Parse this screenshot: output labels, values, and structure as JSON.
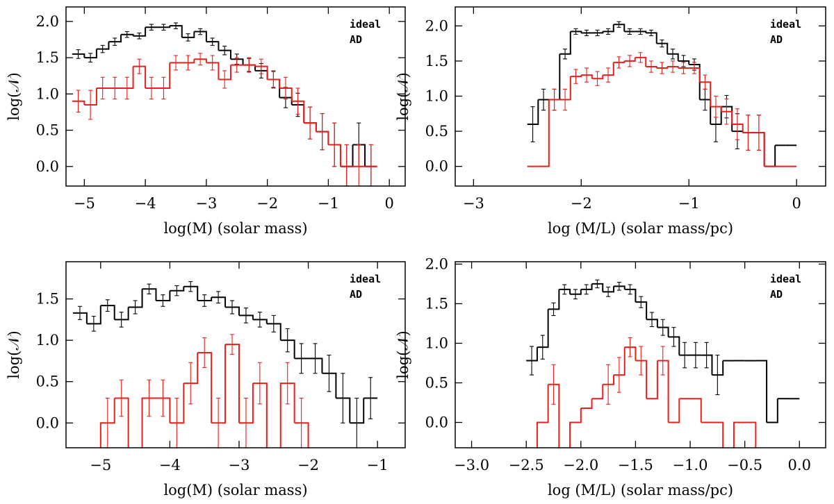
{
  "chart_data": [
    {
      "type": "histogram",
      "xlabel": "log(M) (solar mass)",
      "ylabel": "log(𝒩)",
      "legend": "upper right",
      "xlim": [
        -5.3,
        0.26
      ],
      "ylim": [
        -0.27,
        2.2
      ],
      "xticks": [
        {
          "value": -5,
          "label": "−5"
        },
        {
          "value": -4,
          "label": "−4"
        },
        {
          "value": -3,
          "label": "−3"
        },
        {
          "value": -2,
          "label": "−2"
        },
        {
          "value": -1,
          "label": "−1"
        },
        0
      ],
      "yticks": [
        {
          "value": 0,
          "label": "0.0"
        },
        0.5,
        {
          "value": 1,
          "label": "1.0"
        },
        1.5,
        {
          "value": 2,
          "label": "2.0"
        }
      ],
      "bins": [
        -5.2,
        -5.0,
        -4.8,
        -4.6,
        -4.4,
        -4.2,
        -4.0,
        -3.8,
        -3.6,
        -3.4,
        -3.2,
        -3.0,
        -2.8,
        -2.6,
        -2.4,
        -2.2,
        -2.0,
        -1.8,
        -1.6,
        -1.4,
        -1.2,
        -1.0,
        -0.8,
        -0.6,
        -0.4,
        -0.2
      ],
      "series": [
        {
          "name": "ideal",
          "color": "#000000",
          "values": [
            1.55,
            1.5,
            1.62,
            1.72,
            1.82,
            1.8,
            1.92,
            1.92,
            1.94,
            1.78,
            1.86,
            1.72,
            1.6,
            1.48,
            1.4,
            1.32,
            1.2,
            0.95,
            0.85,
            0.6,
            0.48,
            0.3,
            0,
            0.3,
            0
          ],
          "errors": [
            0.06,
            0.06,
            0.05,
            0.05,
            0.04,
            0.04,
            0.04,
            0.04,
            0.04,
            0.05,
            0.04,
            0.05,
            0.06,
            0.07,
            0.09,
            0.1,
            0.11,
            0.14,
            0.16,
            0.22,
            0.25,
            0.3,
            0.3,
            0.3,
            0.3
          ]
        },
        {
          "name": "AD",
          "color": "#e8201c",
          "values": [
            0.9,
            0.85,
            1.08,
            1.08,
            1.08,
            1.38,
            1.08,
            1.08,
            1.43,
            1.43,
            1.48,
            1.43,
            1.2,
            1.4,
            1.4,
            1.38,
            1.2,
            1.08,
            0.9,
            0.6,
            0.48,
            0.3,
            0,
            0,
            0
          ],
          "errors": [
            0.15,
            0.2,
            0.15,
            0.15,
            0.15,
            0.1,
            0.15,
            0.15,
            0.1,
            0.1,
            0.08,
            0.1,
            0.12,
            0.1,
            0.1,
            0.1,
            0.12,
            0.15,
            0.18,
            0.22,
            0.25,
            0.3,
            0.3,
            0.3,
            0.3
          ]
        }
      ]
    },
    {
      "type": "histogram",
      "xlabel": "log (M/L) (solar mass/pc)",
      "ylabel": "log(𝒩)",
      "legend": "upper right",
      "xlim": [
        -3.17,
        0.27
      ],
      "ylim": [
        -0.28,
        2.27
      ],
      "xticks": [
        {
          "value": -3,
          "label": "−3"
        },
        {
          "value": -2,
          "label": "−2"
        },
        {
          "value": -1,
          "label": "−1"
        },
        0
      ],
      "yticks": [
        {
          "value": 0,
          "label": "0.0"
        },
        0.5,
        {
          "value": 1,
          "label": "1.0"
        },
        1.5,
        {
          "value": 2,
          "label": "2.0"
        }
      ],
      "bins": [
        -2.5,
        -2.4,
        -2.3,
        -2.2,
        -2.1,
        -2.0,
        -1.9,
        -1.8,
        -1.7,
        -1.6,
        -1.5,
        -1.4,
        -1.3,
        -1.2,
        -1.1,
        -1.0,
        -0.9,
        -0.8,
        -0.7,
        -0.6,
        -0.5,
        -0.4,
        -0.3,
        -0.2,
        -0.1,
        0.0
      ],
      "series": [
        {
          "name": "ideal",
          "color": "#000000",
          "values": [
            0.6,
            0.95,
            0.95,
            1.6,
            1.92,
            1.9,
            1.9,
            1.92,
            2.02,
            1.92,
            1.92,
            1.9,
            1.75,
            1.6,
            1.5,
            1.45,
            0.95,
            0.6,
            0.85,
            0.5,
            0.48,
            0.48,
            0,
            0.3,
            0.3
          ],
          "errors": [
            0.25,
            0.15,
            0.15,
            0.07,
            0.04,
            0.04,
            0.04,
            0.04,
            0.04,
            0.04,
            0.04,
            0.04,
            0.05,
            0.07,
            0.08,
            0.08,
            0.15,
            0.25,
            0.16,
            0.25,
            0.25,
            0.25,
            null,
            null,
            null
          ]
        },
        {
          "name": "AD",
          "color": "#e8201c",
          "values": [
            0,
            0,
            0.95,
            0.95,
            1.28,
            1.3,
            1.25,
            1.3,
            1.48,
            1.5,
            1.55,
            1.42,
            1.4,
            1.42,
            1.4,
            1.4,
            1.2,
            0.85,
            0.78,
            0.6,
            0.48,
            0.48,
            0,
            0,
            0
          ],
          "errors": [
            null,
            null,
            0.15,
            0.15,
            0.1,
            0.1,
            0.1,
            0.1,
            0.08,
            0.08,
            0.07,
            0.08,
            0.08,
            0.08,
            0.08,
            0.08,
            0.1,
            0.15,
            0.18,
            0.22,
            0.25,
            0.25,
            null,
            null,
            null
          ]
        }
      ]
    },
    {
      "type": "histogram",
      "xlabel": "log(M) (solar mass)",
      "ylabel": "log(𝒩)",
      "legend": "upper right",
      "xlim": [
        -5.5,
        -0.6
      ],
      "ylim": [
        -0.3,
        1.95
      ],
      "xticks": [
        {
          "value": -5,
          "label": "−5"
        },
        {
          "value": -4,
          "label": "−4"
        },
        {
          "value": -3,
          "label": "−3"
        },
        {
          "value": -2,
          "label": "−2"
        },
        {
          "value": -1,
          "label": "−1"
        }
      ],
      "yticks": [
        {
          "value": 0,
          "label": "0.0"
        },
        0.5,
        {
          "value": 1,
          "label": "1.0"
        },
        1.5
      ],
      "bins": [
        -5.4,
        -5.2,
        -5.0,
        -4.8,
        -4.6,
        -4.4,
        -4.2,
        -4.0,
        -3.8,
        -3.6,
        -3.4,
        -3.2,
        -3.0,
        -2.8,
        -2.6,
        -2.4,
        -2.2,
        -2.0,
        -1.8,
        -1.6,
        -1.4,
        -1.2,
        -1.0
      ],
      "series": [
        {
          "name": "ideal",
          "color": "#000000",
          "values": [
            1.33,
            1.2,
            1.42,
            1.25,
            1.4,
            1.62,
            1.48,
            1.6,
            1.65,
            1.48,
            1.52,
            1.4,
            1.3,
            1.25,
            1.2,
            1.0,
            0.78,
            0.78,
            0.6,
            0.3,
            0,
            0.3
          ],
          "errors": [
            0.08,
            0.09,
            0.07,
            0.09,
            0.08,
            0.06,
            0.07,
            0.06,
            0.06,
            0.07,
            0.07,
            0.08,
            0.09,
            0.09,
            0.1,
            0.14,
            0.18,
            0.18,
            0.22,
            0.3,
            0.3,
            0.25
          ]
        },
        {
          "name": "AD",
          "color": "#e8201c",
          "values": [
            null,
            null,
            0,
            0.3,
            null,
            0.3,
            0.3,
            0,
            0.48,
            0.85,
            0,
            0.95,
            0,
            0.48,
            null,
            0.48,
            0,
            null,
            null,
            null,
            null,
            null
          ],
          "errors": [
            null,
            null,
            0.3,
            0.22,
            null,
            0.22,
            0.22,
            0.3,
            0.25,
            0.18,
            0.3,
            0.12,
            0.3,
            0.25,
            null,
            0.25,
            0.3,
            null,
            null,
            null,
            null,
            null
          ]
        }
      ]
    },
    {
      "type": "histogram",
      "xlabel": "log (M/L) (solar mass/pc)",
      "ylabel": "log(𝒩)",
      "legend": "upper right",
      "xlim": [
        -3.15,
        0.24
      ],
      "ylim": [
        -0.32,
        2.03
      ],
      "xticks": [
        {
          "value": -3,
          "label": "−3.0"
        },
        {
          "value": -2.5,
          "label": "−2.5"
        },
        {
          "value": -2,
          "label": "−2.0"
        },
        {
          "value": -1.5,
          "label": "−1.5"
        },
        {
          "value": -1,
          "label": "−1.0"
        },
        {
          "value": -0.5,
          "label": "−0.5"
        },
        {
          "value": 0,
          "label": "0.0"
        }
      ],
      "yticks": [
        {
          "value": 0,
          "label": "0.0"
        },
        0.5,
        {
          "value": 1,
          "label": "1.0"
        },
        1.5,
        {
          "value": 2,
          "label": "2.0"
        }
      ],
      "bins": [
        -2.5,
        -2.4,
        -2.3,
        -2.2,
        -2.1,
        -2.0,
        -1.9,
        -1.8,
        -1.7,
        -1.6,
        -1.5,
        -1.4,
        -1.3,
        -1.2,
        -1.1,
        -1.0,
        -0.9,
        -0.8,
        -0.7,
        -0.6,
        -0.5,
        -0.4,
        -0.3,
        -0.2,
        -0.1,
        0.0
      ],
      "series": [
        {
          "name": "ideal",
          "color": "#000000",
          "values": [
            0.78,
            0.95,
            1.43,
            1.68,
            1.62,
            1.68,
            1.75,
            1.65,
            1.72,
            1.68,
            1.52,
            1.3,
            1.2,
            1.08,
            0.85,
            0.85,
            0.85,
            0.6,
            0.78,
            0.78,
            0.78,
            0.78,
            0,
            0.3,
            0.3
          ],
          "errors": [
            0.18,
            0.15,
            0.08,
            0.06,
            0.06,
            0.06,
            0.05,
            0.06,
            0.05,
            0.06,
            0.07,
            0.09,
            0.1,
            0.12,
            0.16,
            0.16,
            0.16,
            0.25,
            null,
            null,
            null,
            null,
            null,
            null,
            null
          ]
        },
        {
          "name": "AD",
          "color": "#e8201c",
          "values": [
            null,
            0,
            0.48,
            null,
            0,
            0.18,
            0.3,
            0.48,
            0.6,
            0.95,
            0.78,
            0.3,
            0.78,
            0,
            0.3,
            0.3,
            0,
            0,
            null,
            0,
            0,
            null,
            null,
            null,
            null
          ],
          "errors": [
            null,
            null,
            0.25,
            null,
            null,
            null,
            null,
            0.25,
            0.22,
            0.12,
            0.18,
            null,
            0.18,
            null,
            null,
            null,
            null,
            null,
            null,
            null,
            null,
            null,
            null,
            null,
            null
          ]
        }
      ]
    }
  ]
}
